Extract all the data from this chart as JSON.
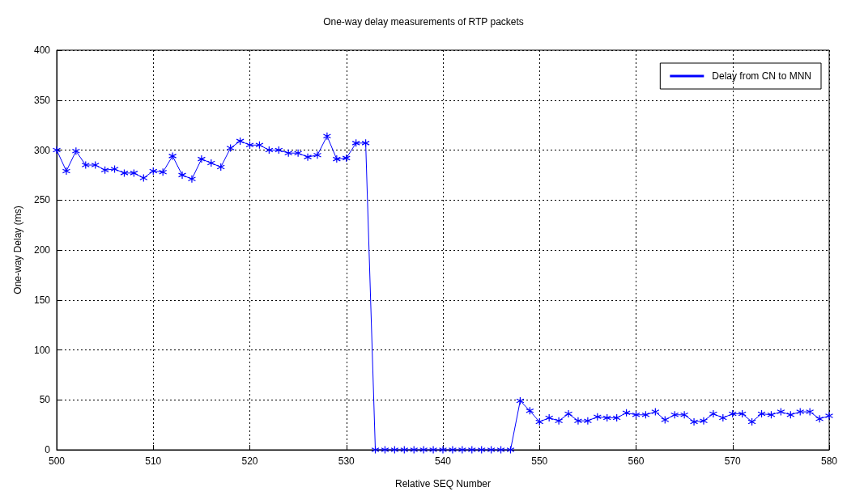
{
  "chart_data": {
    "type": "line",
    "title": "One-way delay measurements of RTP packets",
    "xlabel": "Relative SEQ Number",
    "ylabel": "One-way Delay (ms)",
    "x": [
      500,
      501,
      502,
      503,
      504,
      505,
      506,
      507,
      508,
      509,
      510,
      511,
      512,
      513,
      514,
      515,
      516,
      517,
      518,
      519,
      520,
      521,
      522,
      523,
      524,
      525,
      526,
      527,
      528,
      529,
      530,
      531,
      532,
      533,
      534,
      535,
      536,
      537,
      538,
      539,
      540,
      541,
      542,
      543,
      544,
      545,
      546,
      547,
      548,
      549,
      550,
      551,
      552,
      553,
      554,
      555,
      556,
      557,
      558,
      559,
      560,
      561,
      562,
      563,
      564,
      565,
      566,
      567,
      568,
      569,
      570,
      571,
      572,
      573,
      574,
      575,
      576,
      577,
      578,
      579,
      580
    ],
    "series": [
      {
        "name": "Delay from CN to MNN",
        "color": "#0000ff",
        "values": [
          300,
          279,
          299,
          285,
          285,
          280,
          281,
          277,
          277,
          272,
          279,
          278,
          294,
          275,
          271,
          291,
          287,
          283,
          302,
          309,
          305,
          305,
          300,
          300,
          297,
          297,
          293,
          295,
          314,
          291,
          292,
          307,
          307,
          0,
          0,
          0,
          0,
          0,
          0,
          0,
          0,
          0,
          0,
          0,
          0,
          0,
          0,
          0,
          49,
          39,
          28,
          32,
          29,
          36,
          29,
          29,
          33,
          32,
          32,
          37,
          35,
          35,
          38,
          30,
          35,
          35,
          28,
          29,
          36,
          32,
          36,
          36,
          28,
          36,
          35,
          38,
          35,
          38,
          38,
          31,
          34
        ]
      }
    ],
    "xlim": [
      500,
      580
    ],
    "xticks": [
      500,
      510,
      520,
      530,
      540,
      550,
      560,
      570,
      580
    ],
    "ylim": [
      0,
      400
    ],
    "yticks": [
      0,
      50,
      100,
      150,
      200,
      250,
      300,
      350,
      400
    ],
    "grid": true,
    "legend": "top right",
    "marker": "cross",
    "line_style": "solid"
  }
}
